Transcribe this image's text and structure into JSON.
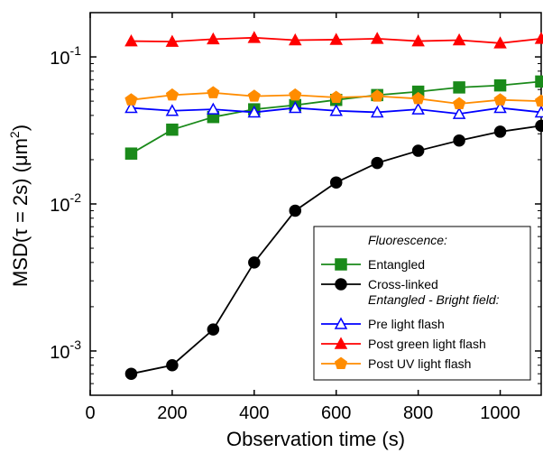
{
  "chart_data": {
    "type": "line",
    "xlabel": "Observation time (s)",
    "ylabel": "MSD(τ = 2s) (μm²)",
    "ylabel_main": "MSD(τ = 2s) (μm",
    "ylabel_sup": "2",
    "ylabel_close": ")",
    "xlim": [
      0,
      1100
    ],
    "ylim": [
      0.0005,
      0.2
    ],
    "yscale": "log",
    "x_ticks": [
      0,
      200,
      400,
      600,
      800,
      1000
    ],
    "x_tick_labels": [
      "0",
      "200",
      "400",
      "600",
      "800",
      "1000"
    ],
    "y_ticks": [
      0.001,
      0.01,
      0.1
    ],
    "y_tick_labels": [
      {
        "base": "10",
        "exp": "-3"
      },
      {
        "base": "10",
        "exp": "-2"
      },
      {
        "base": "10",
        "exp": "-1"
      }
    ],
    "x": [
      100,
      200,
      300,
      400,
      500,
      600,
      700,
      800,
      900,
      1000,
      1100
    ],
    "series": [
      {
        "name": "Entangled",
        "color": "#1a8a1a",
        "marker": "square",
        "fill": true,
        "values": [
          0.022,
          0.032,
          0.039,
          0.044,
          0.047,
          0.051,
          0.055,
          0.058,
          0.062,
          0.064,
          0.068
        ]
      },
      {
        "name": "Cross-linked",
        "color": "#000000",
        "marker": "circle",
        "fill": true,
        "values": [
          0.0007,
          0.0008,
          0.0014,
          0.004,
          0.009,
          0.014,
          0.019,
          0.023,
          0.027,
          0.031,
          0.034
        ]
      },
      {
        "name": "Pre light flash",
        "color": "#0000ff",
        "marker": "triangle",
        "fill": false,
        "values": [
          0.045,
          0.043,
          0.044,
          0.042,
          0.045,
          0.043,
          0.042,
          0.044,
          0.041,
          0.045,
          0.042
        ]
      },
      {
        "name": "Post green light flash",
        "color": "#ff0000",
        "marker": "triangle",
        "fill": true,
        "values": [
          0.128,
          0.127,
          0.132,
          0.135,
          0.13,
          0.131,
          0.133,
          0.128,
          0.13,
          0.124,
          0.133
        ]
      },
      {
        "name": "Post UV light flash",
        "color": "#ff8c00",
        "marker": "pentagon",
        "fill": true,
        "values": [
          0.051,
          0.055,
          0.057,
          0.054,
          0.055,
          0.053,
          0.054,
          0.052,
          0.048,
          0.051,
          0.05
        ]
      }
    ],
    "legend": {
      "placement": "bottom-right",
      "heading1": "Fluorescence:",
      "heading2": "Entangled - Bright field:",
      "entries": [
        "Entangled",
        "Cross-linked",
        "Pre light flash",
        "Post green light flash",
        "Post UV light flash"
      ]
    },
    "grid": false
  }
}
